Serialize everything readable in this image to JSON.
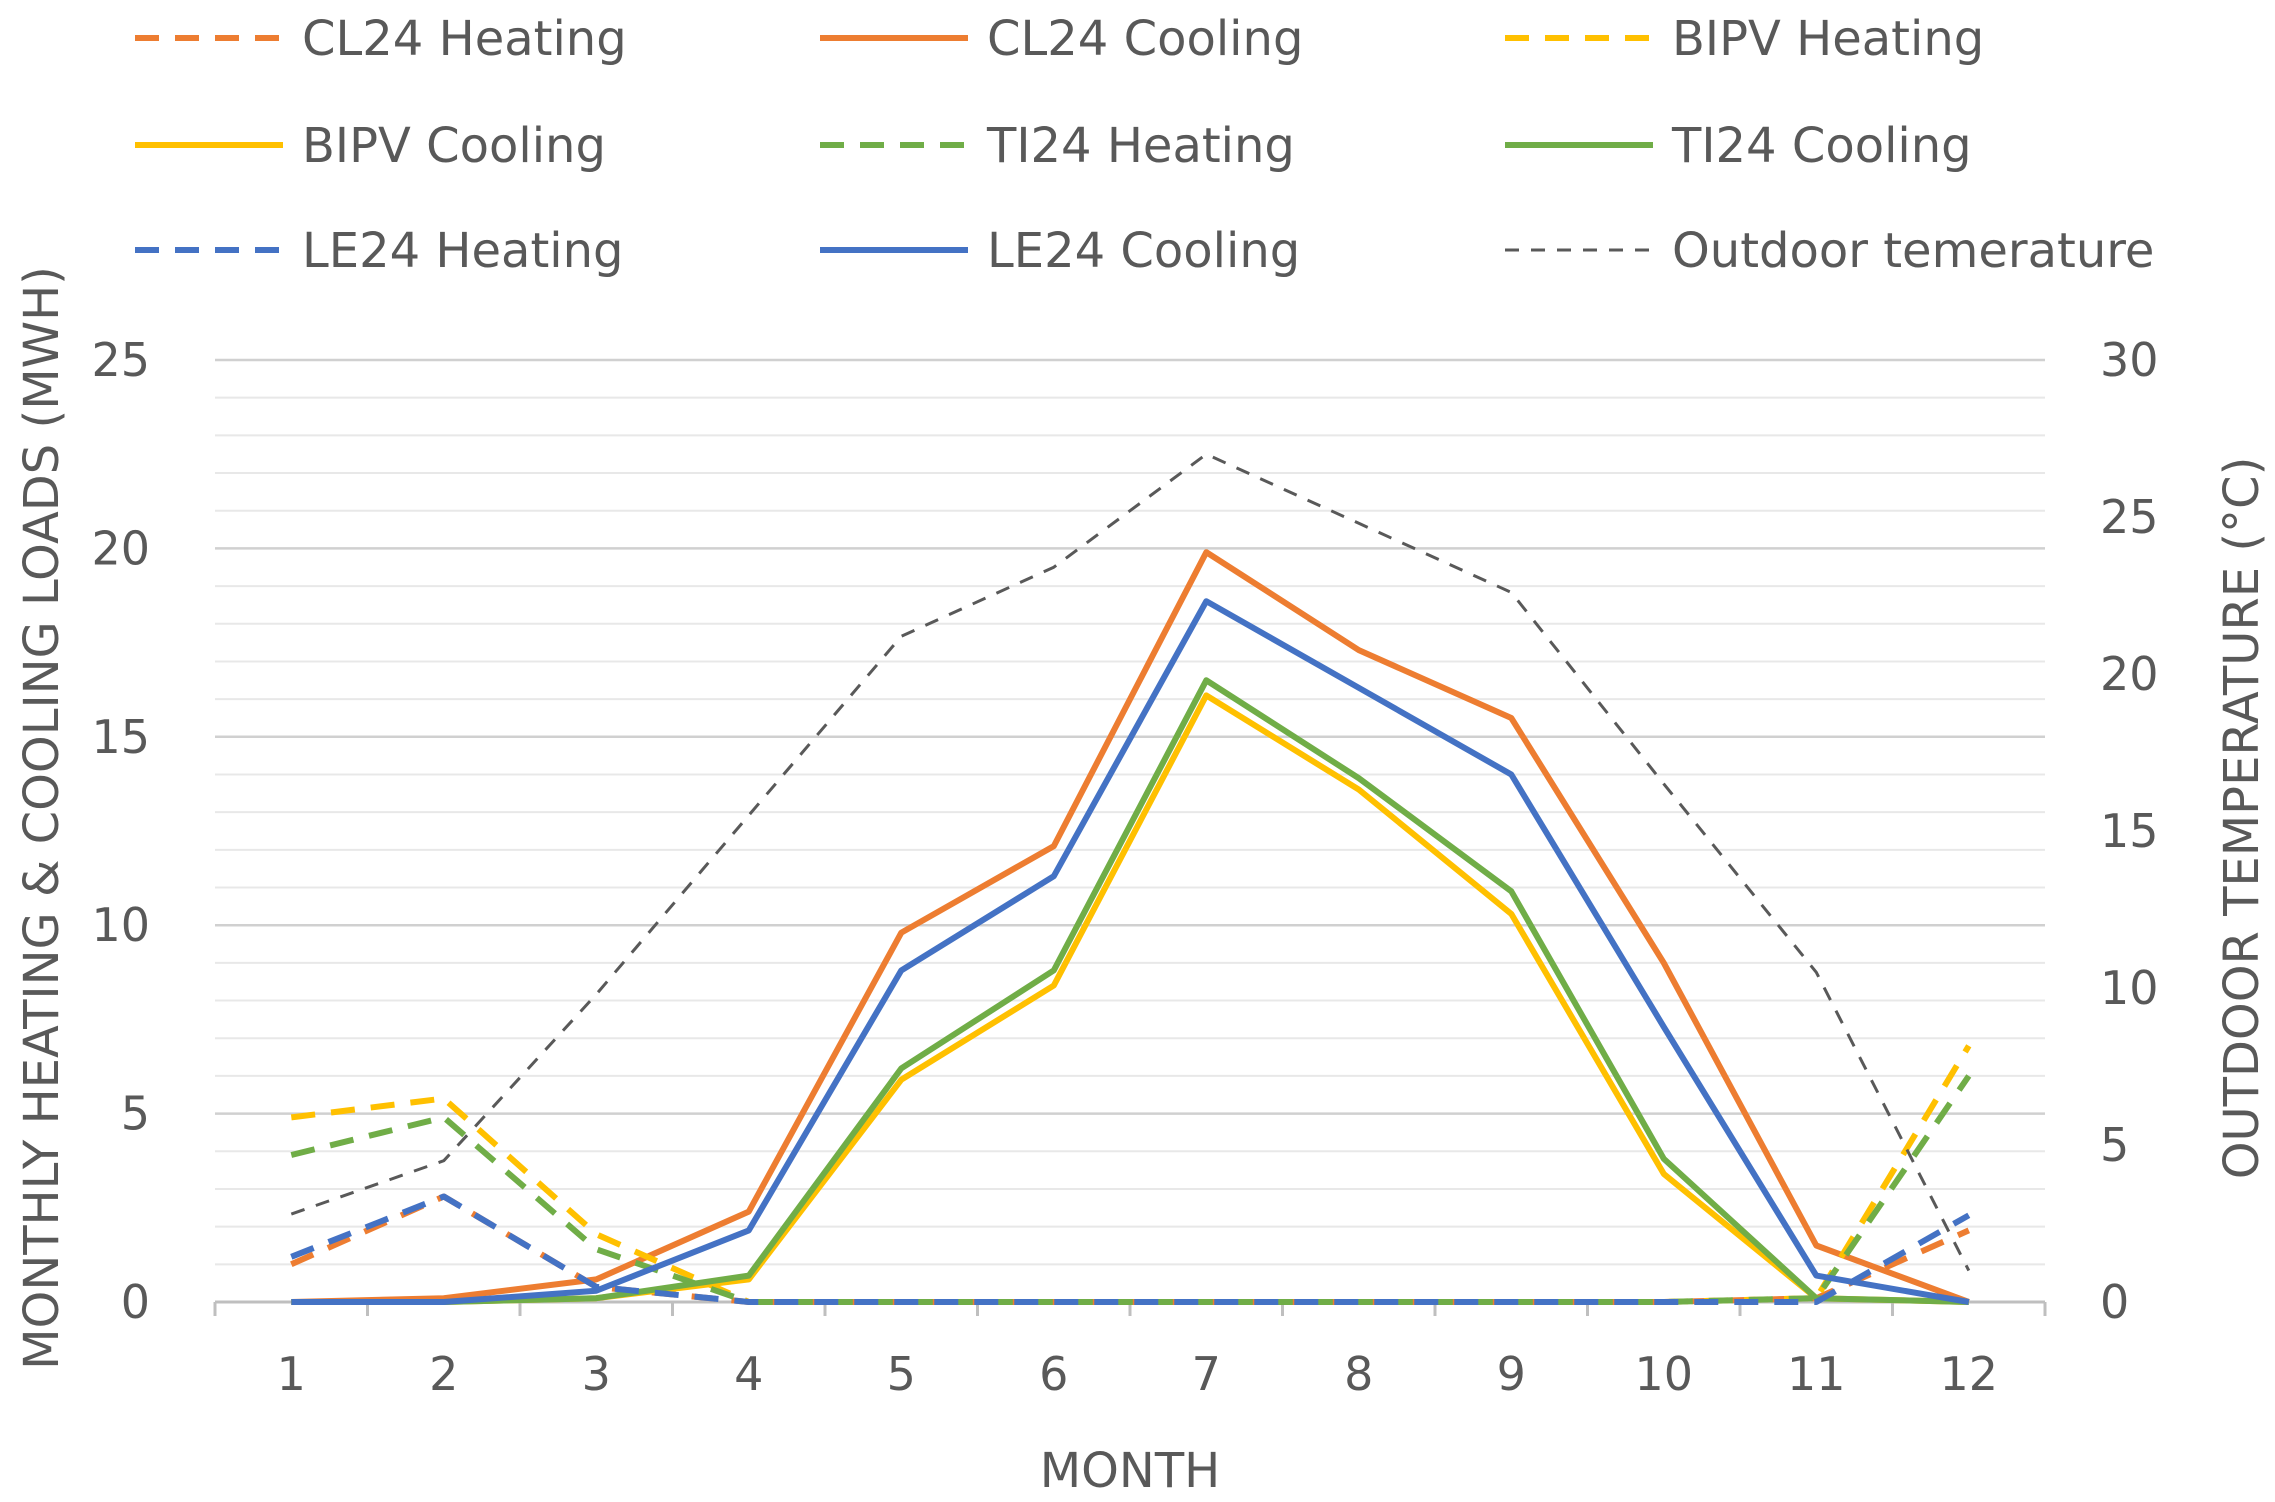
{
  "chart_data": {
    "type": "line",
    "title": "",
    "xlabel": "MONTH",
    "ylabel": "MONTHLY HEATING & COOLING LOADS (MWH)",
    "y2label": "OUTDOOR TEMPERATURE (°C)",
    "categories": [
      "1",
      "2",
      "3",
      "4",
      "5",
      "6",
      "7",
      "8",
      "9",
      "10",
      "11",
      "12"
    ],
    "ylim": [
      0,
      25
    ],
    "yticks": [
      "0",
      "5",
      "10",
      "15",
      "20",
      "25"
    ],
    "y2lim": [
      0,
      30
    ],
    "y2ticks": [
      "0",
      "5",
      "10",
      "15",
      "20",
      "25",
      "30"
    ],
    "grid": true,
    "legend_position": "top",
    "series": [
      {
        "name": "CL24 Heating",
        "color": "#ED7D31",
        "dash": true,
        "axis": "left",
        "values": [
          1.0,
          2.8,
          0.4,
          0.0,
          0.0,
          0.0,
          0.0,
          0.0,
          0.0,
          0.0,
          0.1,
          1.9
        ]
      },
      {
        "name": "CL24 Cooling",
        "color": "#ED7D31",
        "dash": false,
        "axis": "left",
        "values": [
          0.0,
          0.1,
          0.6,
          2.4,
          9.8,
          12.1,
          19.9,
          17.3,
          15.5,
          9.0,
          1.5,
          0.0
        ]
      },
      {
        "name": "BIPV Heating",
        "color": "#FFC000",
        "dash": true,
        "axis": "left",
        "values": [
          4.9,
          5.4,
          1.8,
          0.0,
          0.0,
          0.0,
          0.0,
          0.0,
          0.0,
          0.0,
          0.1,
          6.8
        ]
      },
      {
        "name": "BIPV Cooling",
        "color": "#FFC000",
        "dash": false,
        "axis": "left",
        "values": [
          0.0,
          0.0,
          0.1,
          0.6,
          5.9,
          8.4,
          16.1,
          13.6,
          10.3,
          3.4,
          0.1,
          0.0
        ]
      },
      {
        "name": "TI24 Heating",
        "color": "#70AD47",
        "dash": true,
        "axis": "left",
        "values": [
          3.9,
          4.9,
          1.4,
          0.0,
          0.0,
          0.0,
          0.0,
          0.0,
          0.0,
          0.0,
          0.1,
          6.0
        ]
      },
      {
        "name": "TI24 Cooling",
        "color": "#70AD47",
        "dash": false,
        "axis": "left",
        "values": [
          0.0,
          0.0,
          0.1,
          0.7,
          6.2,
          8.8,
          16.5,
          13.9,
          10.9,
          3.8,
          0.1,
          0.0
        ]
      },
      {
        "name": "LE24 Heating",
        "color": "#4472C4",
        "dash": true,
        "axis": "left",
        "values": [
          1.2,
          2.8,
          0.4,
          0.0,
          0.0,
          0.0,
          0.0,
          0.0,
          0.0,
          0.0,
          0.0,
          2.3
        ]
      },
      {
        "name": "LE24 Cooling",
        "color": "#4472C4",
        "dash": false,
        "axis": "left",
        "values": [
          0.0,
          0.0,
          0.3,
          1.9,
          8.8,
          11.3,
          18.6,
          16.3,
          14.0,
          7.3,
          0.7,
          0.0
        ]
      },
      {
        "name": "Outdoor temerature",
        "color": "#595959",
        "dash": true,
        "thin": true,
        "axis": "right",
        "values": [
          2.8,
          4.5,
          9.8,
          15.5,
          21.2,
          23.4,
          27.0,
          24.8,
          22.6,
          16.5,
          10.5,
          1.0
        ]
      }
    ]
  }
}
